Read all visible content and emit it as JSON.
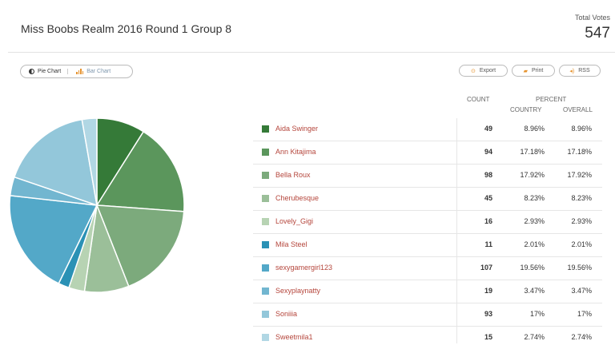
{
  "header": {
    "title": "Miss Boobs Realm 2016 Round 1 Group 8",
    "total_label": "Total Votes",
    "total_value": "547"
  },
  "toolbar": {
    "pie_label": "Pie Chart",
    "bar_label": "Bar Chart",
    "export_label": "Export",
    "print_label": "Print",
    "rss_label": "RSS"
  },
  "table": {
    "count_header": "COUNT",
    "percent_header": "PERCENT",
    "country_header": "COUNTRY",
    "overall_header": "OVERALL",
    "rows": [
      {
        "name": "Aida Swinger",
        "count": "49",
        "country": "8.96%",
        "overall": "8.96%",
        "color": "#357a38"
      },
      {
        "name": "Ann Kitajima",
        "count": "94",
        "country": "17.18%",
        "overall": "17.18%",
        "color": "#5b965c"
      },
      {
        "name": "Bella Roux",
        "count": "98",
        "country": "17.92%",
        "overall": "17.92%",
        "color": "#7caa7c"
      },
      {
        "name": "Cherubesque",
        "count": "45",
        "country": "8.23%",
        "overall": "8.23%",
        "color": "#9bbf99"
      },
      {
        "name": "Lovely_Gigi",
        "count": "16",
        "country": "2.93%",
        "overall": "2.93%",
        "color": "#b7d3b3"
      },
      {
        "name": "Mila Steel",
        "count": "11",
        "country": "2.01%",
        "overall": "2.01%",
        "color": "#2a91b5"
      },
      {
        "name": "sexygamergirl123",
        "count": "107",
        "country": "19.56%",
        "overall": "19.56%",
        "color": "#53a8c8"
      },
      {
        "name": "Sexyplaynatty",
        "count": "19",
        "country": "3.47%",
        "overall": "3.47%",
        "color": "#72b6d0"
      },
      {
        "name": "Soniiia",
        "count": "93",
        "country": "17%",
        "overall": "17%",
        "color": "#93c7da"
      },
      {
        "name": "Sweetmila1",
        "count": "15",
        "country": "2.74%",
        "overall": "2.74%",
        "color": "#b1d7e4"
      }
    ]
  },
  "chart_data": {
    "type": "pie",
    "categories": [
      "Aida Swinger",
      "Ann Kitajima",
      "Bella Roux",
      "Cherubesque",
      "Lovely_Gigi",
      "Mila Steel",
      "sexygamergirl123",
      "Sexyplaynatty",
      "Soniiia",
      "Sweetmila1"
    ],
    "values": [
      49,
      94,
      98,
      45,
      16,
      11,
      107,
      19,
      93,
      15
    ],
    "colors": [
      "#357a38",
      "#5b965c",
      "#7caa7c",
      "#9bbf99",
      "#b7d3b3",
      "#2a91b5",
      "#53a8c8",
      "#72b6d0",
      "#93c7da",
      "#b1d7e4"
    ]
  }
}
